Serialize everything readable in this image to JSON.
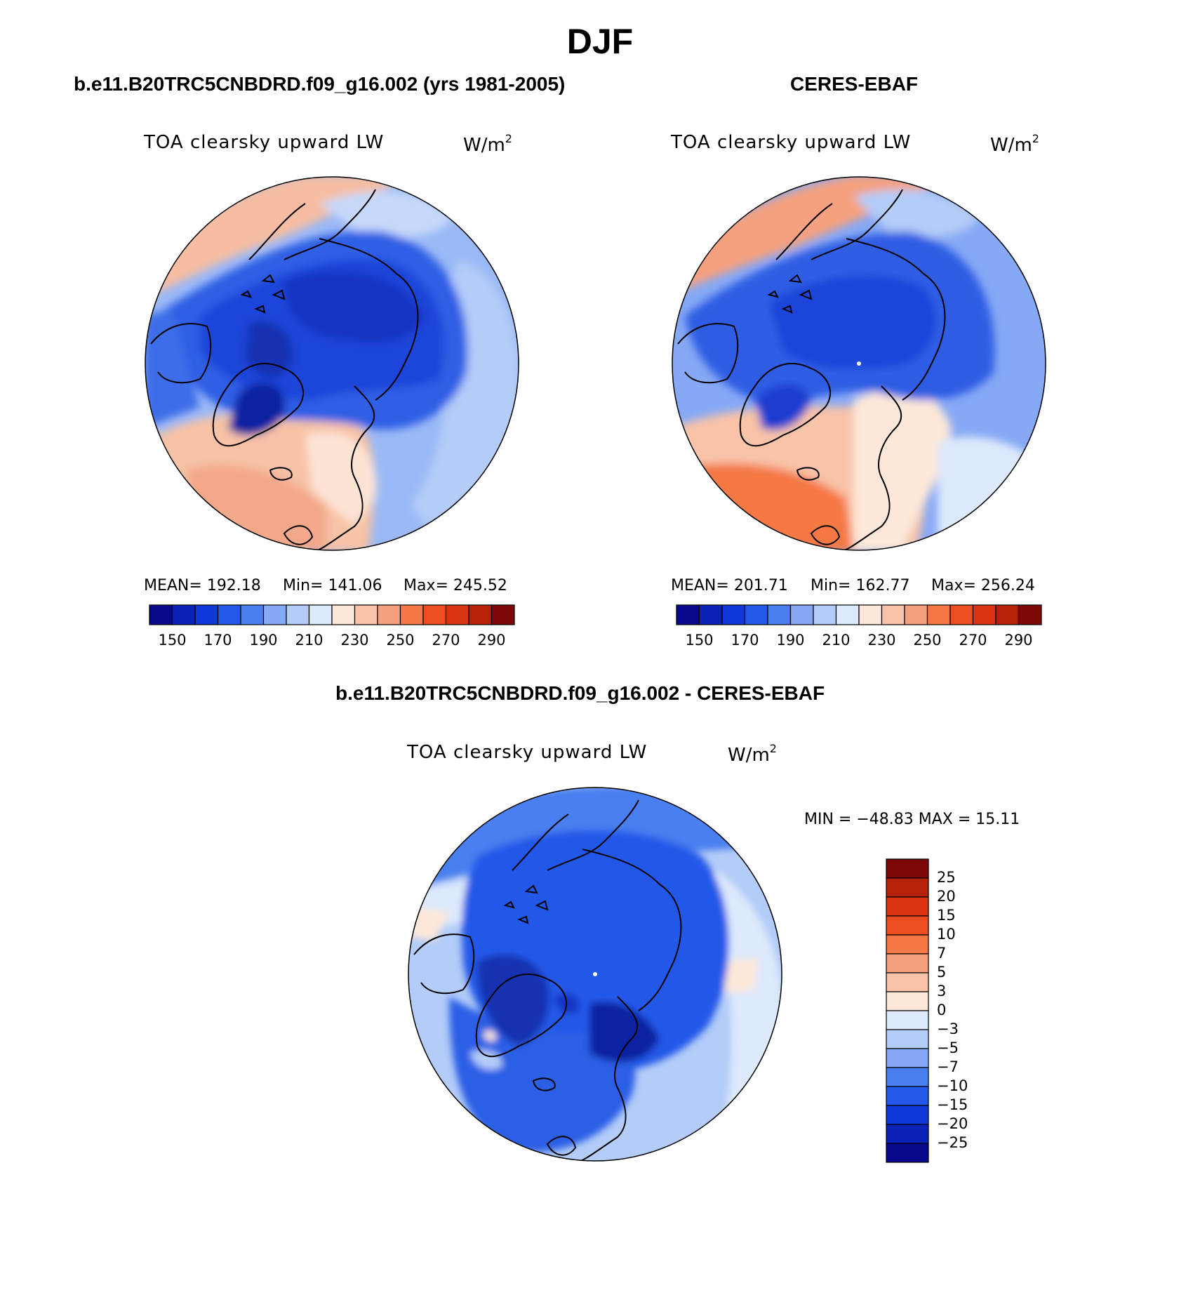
{
  "title": "DJF",
  "colors": {
    "abs_scale": [
      "#08088a",
      "#0a22b8",
      "#1038d8",
      "#2358e8",
      "#4a7ff0",
      "#86a9f5",
      "#b3ccf8",
      "#dde9fc",
      "#fde7d8",
      "#f8c3a8",
      "#f5a07e",
      "#f57845",
      "#ee4d1f",
      "#d93510",
      "#b42208",
      "#7d0808"
    ],
    "diff_scale": [
      "#08088a",
      "#0a22b8",
      "#1038d8",
      "#2358e8",
      "#4a7ff0",
      "#86a9f5",
      "#b3ccf8",
      "#dde9fc",
      "#fde7d8",
      "#f8c3a8",
      "#f5a07e",
      "#f57845",
      "#ee4d1f",
      "#d93510",
      "#b42208",
      "#7d0808"
    ]
  },
  "panels": [
    {
      "title": "b.e11.B20TRC5CNBDRD.f09_g16.002 (yrs 1981-2005)",
      "variable": "TOA clearsky upward LW",
      "units": "W/m",
      "units_sup": "2",
      "stats": {
        "mean": "MEAN= 192.18",
        "min": "Min= 141.06",
        "max": "Max= 245.52"
      },
      "colorbar_ticks": [
        "150",
        "170",
        "190",
        "210",
        "230",
        "250",
        "270",
        "290"
      ]
    },
    {
      "title": "CERES-EBAF",
      "variable": "TOA clearsky upward LW",
      "units": "W/m",
      "units_sup": "2",
      "stats": {
        "mean": "MEAN= 201.71",
        "min": "Min= 162.77",
        "max": "Max= 256.24"
      },
      "colorbar_ticks": [
        "150",
        "170",
        "190",
        "210",
        "230",
        "250",
        "270",
        "290"
      ]
    }
  ],
  "difference": {
    "title": "b.e11.B20TRC5CNBDRD.f09_g16.002 - CERES-EBAF",
    "variable": "TOA clearsky upward LW",
    "units": "W/m",
    "units_sup": "2",
    "minmax": "MIN = −48.83 MAX =   15.11",
    "colorbar_ticks": [
      "25",
      "20",
      "15",
      "10",
      "7",
      "5",
      "3",
      "0",
      "−3",
      "−5",
      "−7",
      "−10",
      "−15",
      "−20",
      "−25"
    ]
  }
}
